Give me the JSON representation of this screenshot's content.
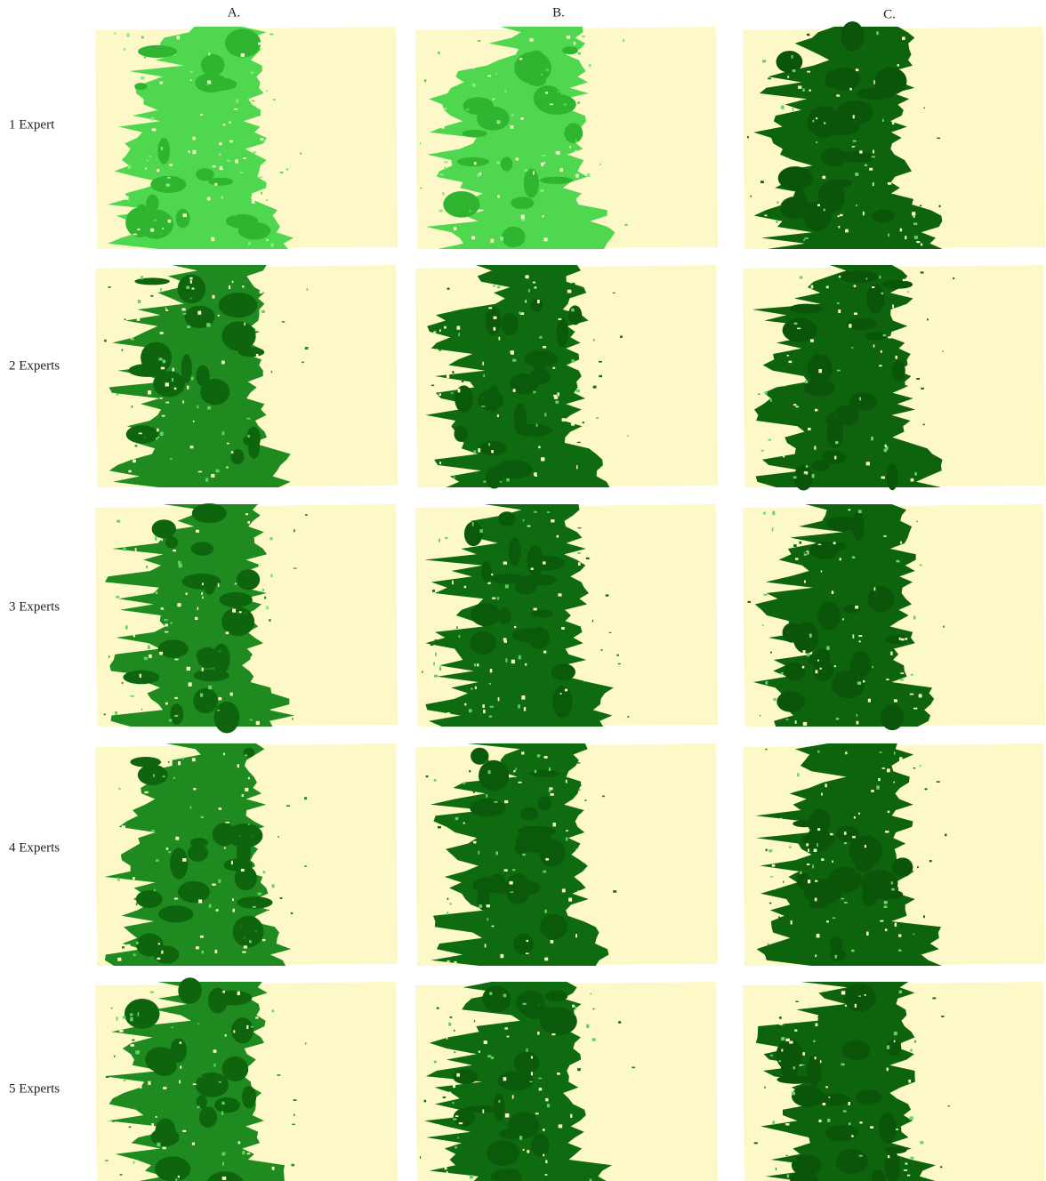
{
  "columns": [
    "A.",
    "B.",
    "C."
  ],
  "rows": [
    "1 Expert",
    "2 Experts",
    "3 Experts",
    "4 Experts",
    "5 Experts"
  ]
}
